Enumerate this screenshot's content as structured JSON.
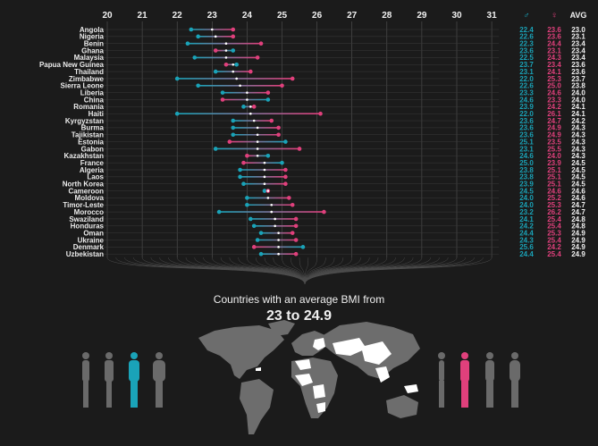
{
  "chart_data": {
    "type": "dumbbell",
    "title": "Countries with an average BMI from",
    "subtitle": "23 to 24.9",
    "x_ticks": [
      "20",
      "21",
      "22",
      "23",
      "24",
      "25",
      "26",
      "27",
      "28",
      "29",
      "30",
      "31"
    ],
    "xlim": [
      20,
      31
    ],
    "column_headers": {
      "male": "♂",
      "female": "♀",
      "avg": "AVG"
    },
    "colors": {
      "male": "#1aa3b8",
      "female": "#e0407c",
      "avg": "#ffffff",
      "grid": "#555555",
      "background": "#1b1b1b"
    },
    "countries": [
      {
        "name": "Angola",
        "male": 22.4,
        "female": 23.6,
        "avg": 23.0
      },
      {
        "name": "Nigeria",
        "male": 22.6,
        "female": 23.6,
        "avg": 23.1
      },
      {
        "name": "Benin",
        "male": 22.3,
        "female": 24.4,
        "avg": 23.4
      },
      {
        "name": "Ghana",
        "male": 23.6,
        "female": 23.1,
        "avg": 23.4
      },
      {
        "name": "Malaysia",
        "male": 22.5,
        "female": 24.3,
        "avg": 23.4
      },
      {
        "name": "Papua New Guinea",
        "male": 23.7,
        "female": 23.4,
        "avg": 23.6
      },
      {
        "name": "Thailand",
        "male": 23.1,
        "female": 24.1,
        "avg": 23.6
      },
      {
        "name": "Zimbabwe",
        "male": 22.0,
        "female": 25.3,
        "avg": 23.7
      },
      {
        "name": "Sierra Leone",
        "male": 22.6,
        "female": 25.0,
        "avg": 23.8
      },
      {
        "name": "Liberia",
        "male": 23.3,
        "female": 24.6,
        "avg": 24.0
      },
      {
        "name": "China",
        "male": 24.6,
        "female": 23.3,
        "avg": 24.0
      },
      {
        "name": "Romania",
        "male": 23.9,
        "female": 24.2,
        "avg": 24.1
      },
      {
        "name": "Haiti",
        "male": 22.0,
        "female": 26.1,
        "avg": 24.1
      },
      {
        "name": "Kyrgyzstan",
        "male": 23.6,
        "female": 24.7,
        "avg": 24.2
      },
      {
        "name": "Burma",
        "male": 23.6,
        "female": 24.9,
        "avg": 24.3
      },
      {
        "name": "Tajikistan",
        "male": 23.6,
        "female": 24.9,
        "avg": 24.3
      },
      {
        "name": "Estonia",
        "male": 25.1,
        "female": 23.5,
        "avg": 24.3
      },
      {
        "name": "Gabon",
        "male": 23.1,
        "female": 25.5,
        "avg": 24.3
      },
      {
        "name": "Kazakhstan",
        "male": 24.6,
        "female": 24.0,
        "avg": 24.3
      },
      {
        "name": "France",
        "male": 25.0,
        "female": 23.9,
        "avg": 24.5
      },
      {
        "name": "Algeria",
        "male": 23.8,
        "female": 25.1,
        "avg": 24.5
      },
      {
        "name": "Laos",
        "male": 23.8,
        "female": 25.1,
        "avg": 24.5
      },
      {
        "name": "North Korea",
        "male": 23.9,
        "female": 25.1,
        "avg": 24.5
      },
      {
        "name": "Cameroon",
        "male": 24.5,
        "female": 24.6,
        "avg": 24.6
      },
      {
        "name": "Moldova",
        "male": 24.0,
        "female": 25.2,
        "avg": 24.6
      },
      {
        "name": "Timor-Leste",
        "male": 24.0,
        "female": 25.3,
        "avg": 24.7
      },
      {
        "name": "Morocco",
        "male": 23.2,
        "female": 26.2,
        "avg": 24.7
      },
      {
        "name": "Swaziland",
        "male": 24.1,
        "female": 25.4,
        "avg": 24.8
      },
      {
        "name": "Honduras",
        "male": 24.2,
        "female": 25.4,
        "avg": 24.8
      },
      {
        "name": "Oman",
        "male": 24.4,
        "female": 25.3,
        "avg": 24.9
      },
      {
        "name": "Ukraine",
        "male": 24.3,
        "female": 25.4,
        "avg": 24.9
      },
      {
        "name": "Denmark",
        "male": 25.6,
        "female": 24.2,
        "avg": 24.9
      },
      {
        "name": "Uzbekistan",
        "male": 24.4,
        "female": 25.4,
        "avg": 24.9
      }
    ]
  }
}
